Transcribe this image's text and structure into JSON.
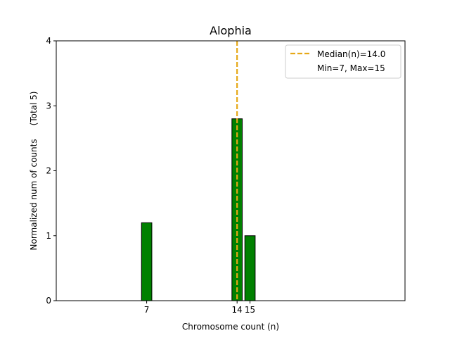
{
  "chart_data": {
    "type": "bar",
    "title": "Alophia",
    "xlabel": "Chromosome count (n)",
    "ylabel": "Normalized num of counts     (Total 5)",
    "xlim": [
      0,
      27
    ],
    "ylim": [
      0,
      4
    ],
    "x_ticks": [
      7,
      14,
      15
    ],
    "x_tick_labels": [
      "7",
      "14",
      "15"
    ],
    "y_ticks": [
      0,
      1,
      2,
      3,
      4
    ],
    "bar_width": 0.8,
    "bars": [
      {
        "x": 7,
        "value": 1.2
      },
      {
        "x": 14,
        "value": 2.8
      },
      {
        "x": 15,
        "value": 1.0
      }
    ],
    "median_line": {
      "x": 14.0,
      "style": "dashed"
    },
    "legend": {
      "position": "top-right",
      "entries": [
        {
          "label": "Median(n)=14.0",
          "marker": "dashed-line"
        },
        {
          "label": "Min=7, Max=15",
          "marker": "none"
        }
      ]
    },
    "colors": {
      "bar_fill": "#008000",
      "bar_edge": "#000000",
      "median": "#E6A817"
    }
  }
}
